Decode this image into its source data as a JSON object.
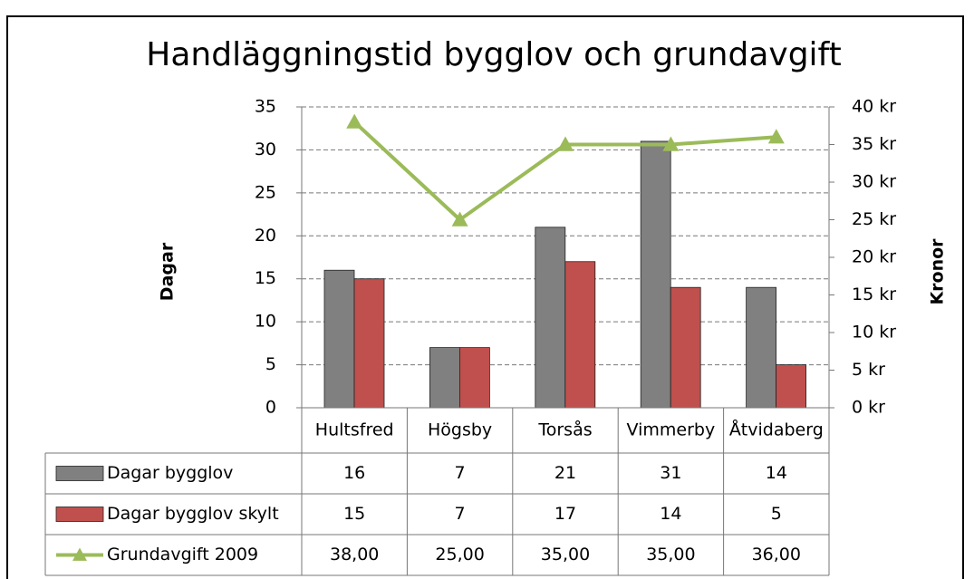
{
  "chart_data": {
    "type": "bar",
    "title": "Handläggningstid bygglov och grundavgift",
    "y_label": "Dagar",
    "y2_label": "Kronor",
    "categories": [
      "Hultsfred",
      "Högsby",
      "Torsås",
      "Vimmerby",
      "Åtvidaberg"
    ],
    "series": [
      {
        "name": "Dagar bygglov",
        "type": "bar",
        "color": "#808080",
        "values": [
          16,
          7,
          21,
          31,
          14
        ]
      },
      {
        "name": "Dagar bygglov skylt",
        "type": "bar",
        "color": "#c0504d",
        "values": [
          15,
          7,
          17,
          14,
          5
        ]
      },
      {
        "name": "Grundavgift 2009",
        "type": "line",
        "axis": "y2",
        "color": "#9bbb59",
        "values": [
          38,
          25,
          35,
          35,
          36
        ],
        "value_labels": [
          "38,00",
          "25,00",
          "35,00",
          "35,00",
          "36,00"
        ]
      }
    ],
    "ylim": [
      0,
      35
    ],
    "yticks": [
      0,
      5,
      10,
      15,
      20,
      25,
      30,
      35
    ],
    "y2lim": [
      0,
      40
    ],
    "y2ticks": [
      {
        "value": 0,
        "label": "0 kr"
      },
      {
        "value": 5,
        "label": "5 kr"
      },
      {
        "value": 10,
        "label": "10 kr"
      },
      {
        "value": 15,
        "label": "15 kr"
      },
      {
        "value": 20,
        "label": "20 kr"
      },
      {
        "value": 25,
        "label": "25 kr"
      },
      {
        "value": 30,
        "label": "30 kr"
      },
      {
        "value": 35,
        "label": "35 kr"
      },
      {
        "value": 40,
        "label": "40 kr"
      }
    ],
    "grid": true,
    "data_table": true
  }
}
